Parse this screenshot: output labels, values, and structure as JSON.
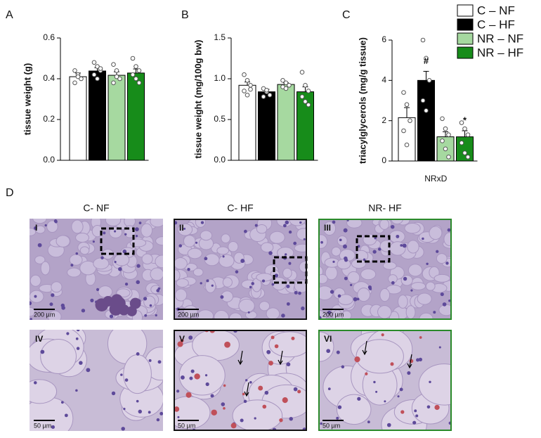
{
  "panel_labels": [
    "A",
    "B",
    "C",
    "D"
  ],
  "legend": [
    {
      "name": "C – NF",
      "color": "#ffffff"
    },
    {
      "name": "C – HF",
      "color": "#000000"
    },
    {
      "name": "NR – NF",
      "color": "#a6d9a0"
    },
    {
      "name": "NR – HF",
      "color": "#178c1a"
    }
  ],
  "chart_data": [
    {
      "type": "bar",
      "ylabel": "tissue weight (g)",
      "ylim": [
        0,
        0.6
      ],
      "yticks": [
        {
          "value": 0,
          "label": "0.0"
        },
        0.2,
        0.4,
        0.6
      ],
      "values": [
        0.41,
        0.438,
        0.417,
        0.428
      ],
      "errors": [
        0.018,
        0.016,
        0.017,
        0.02
      ],
      "points": [
        [
          0.44,
          0.42,
          0.4,
          0.38,
          0.41
        ],
        [
          0.48,
          0.46,
          0.44,
          0.42,
          0.4,
          0.45
        ],
        [
          0.47,
          0.44,
          0.4,
          0.38,
          0.41
        ],
        [
          0.5,
          0.46,
          0.44,
          0.42,
          0.4,
          0.38
        ]
      ]
    },
    {
      "type": "bar",
      "ylabel": "tissue weight (mg/100g bw)",
      "ylim": [
        0,
        1.5
      ],
      "yticks": [
        {
          "value": 0,
          "label": "0.0"
        },
        0.5,
        {
          "value": 1,
          "label": "1.0"
        },
        1.5
      ],
      "values": [
        0.92,
        0.84,
        0.93,
        0.84
      ],
      "errors": [
        0.04,
        0.03,
        0.02,
        0.06
      ],
      "points": [
        [
          1.05,
          0.98,
          0.92,
          0.85,
          0.8,
          0.87
        ],
        [
          0.88,
          0.84,
          0.8,
          0.78,
          0.86
        ],
        [
          0.98,
          0.95,
          0.92,
          0.9,
          0.88
        ],
        [
          1.08,
          0.92,
          0.85,
          0.78,
          0.72,
          0.68
        ]
      ]
    },
    {
      "type": "bar",
      "ylabel": "triacylglycerols (mg/g tissue)",
      "ylim": [
        0,
        6
      ],
      "yticks": [
        0,
        2,
        4,
        6
      ],
      "xlabel": "NRxD",
      "values": [
        2.15,
        4.0,
        1.2,
        1.2
      ],
      "errors": [
        0.5,
        0.45,
        0.25,
        0.3
      ],
      "bar_annotations": [
        null,
        "#",
        null,
        "*"
      ],
      "points": [
        [
          3.4,
          2.8,
          2.0,
          1.5,
          0.8
        ],
        [
          6.0,
          5.1,
          4.0,
          3.0,
          2.5
        ],
        [
          2.1,
          1.6,
          1.3,
          1.0,
          0.6,
          0.2
        ],
        [
          1.9,
          1.6,
          1.3,
          0.9,
          0.4,
          0.2
        ]
      ]
    }
  ],
  "panel_d": {
    "columns": [
      "C- NF",
      "C- HF",
      "NR- HF"
    ],
    "images": [
      {
        "label": "I",
        "scale_bar": "200 µm"
      },
      {
        "label": "II",
        "scale_bar": "200 µm"
      },
      {
        "label": "III",
        "scale_bar": "200 µm"
      },
      {
        "label": "IV",
        "scale_bar": "50 µm"
      },
      {
        "label": "V",
        "scale_bar": "50 µm"
      },
      {
        "label": "VI",
        "scale_bar": "50 µm"
      }
    ]
  }
}
